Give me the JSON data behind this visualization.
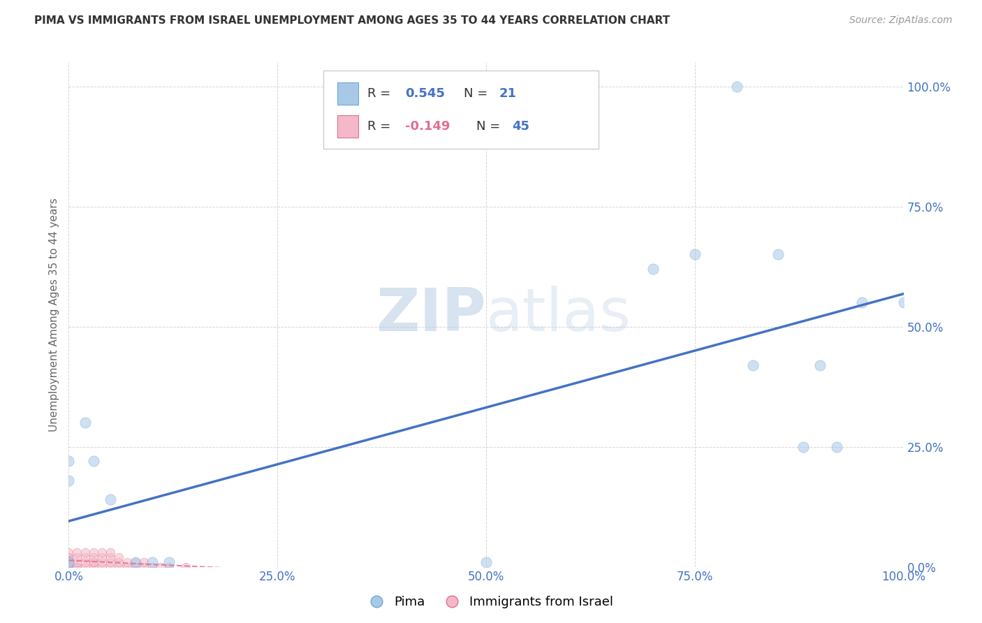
{
  "title": "PIMA VS IMMIGRANTS FROM ISRAEL UNEMPLOYMENT AMONG AGES 35 TO 44 YEARS CORRELATION CHART",
  "source": "Source: ZipAtlas.com",
  "ylabel": "Unemployment Among Ages 35 to 44 years",
  "watermark_zip": "ZIP",
  "watermark_atlas": "atlas",
  "pima_color": "#a8c8e8",
  "pima_edge_color": "#6aaad4",
  "israel_color": "#f4b8c8",
  "israel_edge_color": "#e07090",
  "pima_line_color": "#4472c4",
  "israel_line_color": "#e07090",
  "legend_pima_R": "0.545",
  "legend_pima_N": "21",
  "legend_israel_R": "-0.149",
  "legend_israel_N": "45",
  "pima_x": [
    0.02,
    0.03,
    0.05,
    0.08,
    0.1,
    0.12,
    0.7,
    0.75,
    0.8,
    0.82,
    0.85,
    0.88,
    0.9,
    0.92,
    0.95,
    1.0,
    0.0,
    0.0,
    0.0,
    0.0,
    0.5
  ],
  "pima_y": [
    0.3,
    0.22,
    0.14,
    0.01,
    0.01,
    0.01,
    0.62,
    0.65,
    1.0,
    0.42,
    0.65,
    0.25,
    0.42,
    0.25,
    0.55,
    0.55,
    0.22,
    0.18,
    0.01,
    0.01,
    0.01
  ],
  "israel_x": [
    0.0,
    0.0,
    0.0,
    0.0,
    0.0,
    0.0,
    0.0,
    0.0,
    0.0,
    0.0,
    0.01,
    0.01,
    0.01,
    0.01,
    0.01,
    0.02,
    0.02,
    0.02,
    0.02,
    0.03,
    0.03,
    0.03,
    0.03,
    0.03,
    0.04,
    0.04,
    0.04,
    0.04,
    0.05,
    0.05,
    0.05,
    0.05,
    0.06,
    0.06,
    0.06,
    0.07,
    0.07,
    0.08,
    0.08,
    0.09,
    0.09,
    0.1,
    0.11,
    0.12,
    0.14
  ],
  "israel_y": [
    0.0,
    0.0,
    0.0,
    0.0,
    0.01,
    0.01,
    0.01,
    0.02,
    0.02,
    0.03,
    0.0,
    0.0,
    0.01,
    0.02,
    0.03,
    0.0,
    0.01,
    0.02,
    0.03,
    0.0,
    0.01,
    0.01,
    0.02,
    0.03,
    0.0,
    0.01,
    0.02,
    0.03,
    0.0,
    0.01,
    0.02,
    0.03,
    0.0,
    0.01,
    0.02,
    0.0,
    0.01,
    0.0,
    0.01,
    0.0,
    0.01,
    0.0,
    0.0,
    0.0,
    0.0
  ],
  "xlim": [
    0.0,
    1.0
  ],
  "ylim": [
    0.0,
    1.05
  ],
  "xticks": [
    0.0,
    0.25,
    0.5,
    0.75,
    1.0
  ],
  "yticks": [
    0.0,
    0.25,
    0.5,
    0.75,
    1.0
  ],
  "xticklabels": [
    "0.0%",
    "25.0%",
    "50.0%",
    "75.0%",
    "100.0%"
  ],
  "right_yticklabels": [
    "0.0%",
    "25.0%",
    "50.0%",
    "75.0%",
    "100.0%"
  ],
  "background_color": "#ffffff",
  "grid_color": "#cccccc",
  "dot_size": 80,
  "dot_alpha": 0.55
}
